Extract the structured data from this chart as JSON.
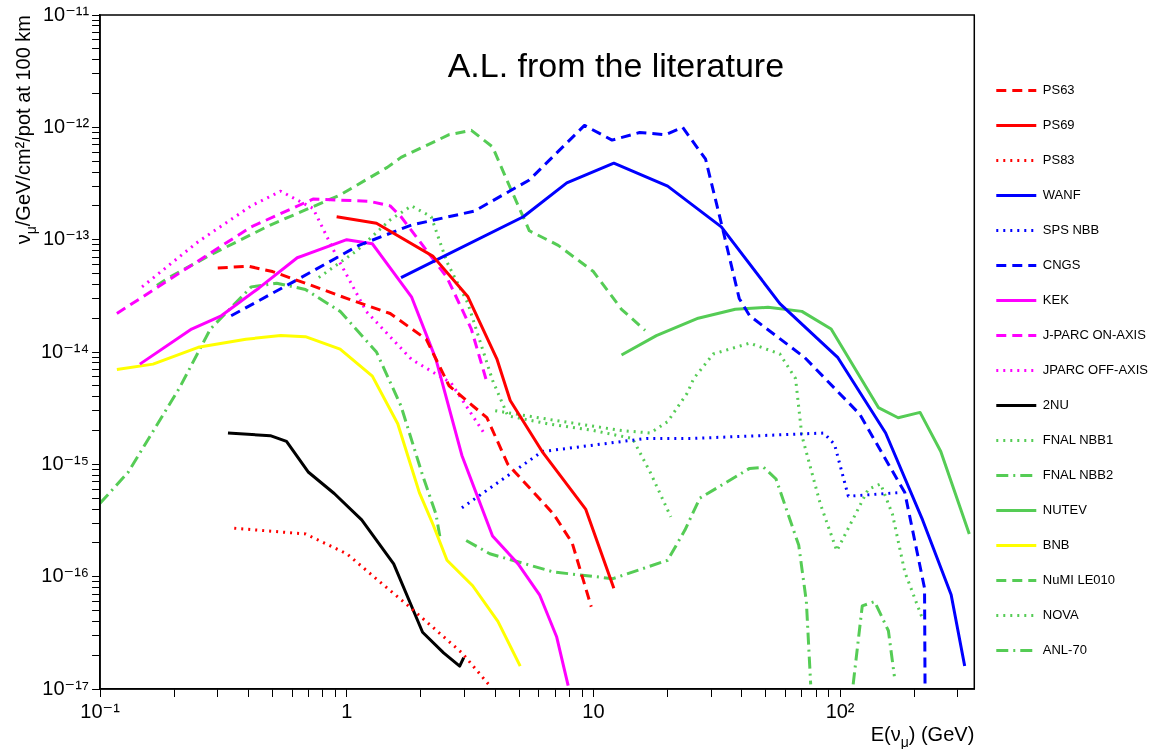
{
  "chart_data": {
    "type": "line",
    "title": "A.L. from the literature",
    "xlabel": "E(ν$_{μ}$) (GeV)",
    "ylabel": "ν$_{μ}$/GeV/cm²/pot at 100 km",
    "log": "xy",
    "marker": "none",
    "legend": "right",
    "xlim": [
      0.1,
      350
    ],
    "ylim": [
      1e-17,
      1e-11
    ],
    "xticks": [
      {
        "value": 0.1,
        "label": "10⁻¹"
      },
      {
        "value": 0.2,
        "label": null
      },
      {
        "value": 0.3,
        "label": null
      },
      {
        "value": 0.4,
        "label": null
      },
      {
        "value": 0.5,
        "label": null
      },
      {
        "value": 0.6,
        "label": null
      },
      {
        "value": 0.7,
        "label": null
      },
      {
        "value": 0.8,
        "label": null
      },
      {
        "value": 0.9,
        "label": null
      },
      1,
      {
        "value": 2,
        "label": null
      },
      {
        "value": 3,
        "label": null
      },
      {
        "value": 4,
        "label": null
      },
      {
        "value": 5,
        "label": null
      },
      {
        "value": 6,
        "label": null
      },
      {
        "value": 7,
        "label": null
      },
      {
        "value": 8,
        "label": null
      },
      {
        "value": 9,
        "label": null
      },
      10,
      {
        "value": 20,
        "label": null
      },
      {
        "value": 30,
        "label": null
      },
      {
        "value": 40,
        "label": null
      },
      {
        "value": 50,
        "label": null
      },
      {
        "value": 60,
        "label": null
      },
      {
        "value": 70,
        "label": null
      },
      {
        "value": 80,
        "label": null
      },
      {
        "value": 90,
        "label": null
      },
      {
        "value": 100,
        "label": "10²"
      },
      {
        "value": 200,
        "label": null
      },
      {
        "value": 300,
        "label": null
      }
    ],
    "yticks": [
      {
        "value": 1e-17,
        "label": "10⁻¹⁷"
      },
      {
        "value": 2e-17,
        "label": null
      },
      {
        "value": 3e-17,
        "label": null
      },
      {
        "value": 4e-17,
        "label": null
      },
      {
        "value": 5e-17,
        "label": null
      },
      {
        "value": 6e-17,
        "label": null
      },
      {
        "value": 7e-17,
        "label": null
      },
      {
        "value": 8e-17,
        "label": null
      },
      {
        "value": 9e-17,
        "label": null
      },
      {
        "value": 1e-16,
        "label": "10⁻¹⁶"
      },
      {
        "value": 2e-16,
        "label": null
      },
      {
        "value": 3e-16,
        "label": null
      },
      {
        "value": 4e-16,
        "label": null
      },
      {
        "value": 5e-16,
        "label": null
      },
      {
        "value": 6e-16,
        "label": null
      },
      {
        "value": 7e-16,
        "label": null
      },
      {
        "value": 8e-16,
        "label": null
      },
      {
        "value": 9e-16,
        "label": null
      },
      {
        "value": 1e-15,
        "label": "10⁻¹⁵"
      },
      {
        "value": 2e-15,
        "label": null
      },
      {
        "value": 3e-15,
        "label": null
      },
      {
        "value": 4e-15,
        "label": null
      },
      {
        "value": 5e-15,
        "label": null
      },
      {
        "value": 6e-15,
        "label": null
      },
      {
        "value": 7e-15,
        "label": null
      },
      {
        "value": 8e-15,
        "label": null
      },
      {
        "value": 9e-15,
        "label": null
      },
      {
        "value": 1e-14,
        "label": "10⁻¹⁴"
      },
      {
        "value": 2e-14,
        "label": null
      },
      {
        "value": 3e-14,
        "label": null
      },
      {
        "value": 4e-14,
        "label": null
      },
      {
        "value": 5e-14,
        "label": null
      },
      {
        "value": 6e-14,
        "label": null
      },
      {
        "value": 7e-14,
        "label": null
      },
      {
        "value": 8e-14,
        "label": null
      },
      {
        "value": 9e-14,
        "label": null
      },
      {
        "value": 1e-13,
        "label": "10⁻¹³"
      },
      {
        "value": 2e-13,
        "label": null
      },
      {
        "value": 3e-13,
        "label": null
      },
      {
        "value": 4e-13,
        "label": null
      },
      {
        "value": 5e-13,
        "label": null
      },
      {
        "value": 6e-13,
        "label": null
      },
      {
        "value": 7e-13,
        "label": null
      },
      {
        "value": 8e-13,
        "label": null
      },
      {
        "value": 9e-13,
        "label": null
      },
      {
        "value": 1e-12,
        "label": "10⁻¹²"
      },
      {
        "value": 2e-12,
        "label": null
      },
      {
        "value": 3e-12,
        "label": null
      },
      {
        "value": 4e-12,
        "label": null
      },
      {
        "value": 5e-12,
        "label": null
      },
      {
        "value": 6e-12,
        "label": null
      },
      {
        "value": 7e-12,
        "label": null
      },
      {
        "value": 8e-12,
        "label": null
      },
      {
        "value": 9e-12,
        "label": null
      },
      {
        "value": 1e-11,
        "label": "10⁻¹¹"
      }
    ],
    "series": [
      {
        "name": "PS63",
        "color": "#ff0000",
        "line_style": "dashed",
        "x": [
          0.3,
          0.4,
          0.5,
          0.7,
          1,
          1.5,
          2.1,
          2.6,
          3.7,
          4.5,
          6.9,
          8.2,
          9.8
        ],
        "values": [
          5.6e-14,
          5.8e-14,
          5.2e-14,
          4e-14,
          3e-14,
          2.2e-14,
          1.3e-14,
          5e-15,
          2.6e-15,
          1e-15,
          3.6e-16,
          2e-16,
          5.4e-17
        ]
      },
      {
        "name": "PS69",
        "color": "#ff0000",
        "line_style": "solid",
        "x": [
          0.91,
          1.32,
          2.24,
          3.1,
          4.06,
          4.6,
          6.2,
          9.3,
          12.1
        ],
        "values": [
          1.6e-13,
          1.4e-13,
          7.1e-14,
          3.1e-14,
          8.7e-15,
          3.7e-15,
          1.3e-15,
          4e-16,
          7.9e-17
        ]
      },
      {
        "name": "PS83",
        "color": "#ff0000",
        "line_style": "dotted",
        "x": [
          0.35,
          0.68,
          1.0,
          1.83,
          2.93,
          3.8
        ],
        "values": [
          2.7e-16,
          2.4e-16,
          1.6e-16,
          5.2e-17,
          2.1e-17,
          1.07e-17
        ]
      },
      {
        "name": "WANF",
        "color": "#0000ff",
        "line_style": "solid",
        "x": [
          1.66,
          5.2,
          7.8,
          12.1,
          20,
          33,
          57,
          98,
          153,
          216,
          282,
          320
        ],
        "values": [
          4.6e-14,
          1.6e-13,
          3.2e-13,
          4.8e-13,
          3e-13,
          1.3e-13,
          2.7e-14,
          8.9e-15,
          1.9e-15,
          3.2e-16,
          6.9e-17,
          1.6e-17
        ]
      },
      {
        "name": "SPS NBB",
        "color": "#0000ff",
        "line_style": "dotted",
        "x": [
          2.93,
          6.2,
          16.4,
          25,
          86,
          95,
          108,
          173
        ],
        "values": [
          4.1e-16,
          1.3e-15,
          1.7e-15,
          1.7e-15,
          1.9e-15,
          1.5e-15,
          5.2e-16,
          5.6e-16
        ]
      },
      {
        "name": "CNGS",
        "color": "#0000ff",
        "line_style": "dashed",
        "x": [
          0.34,
          0.63,
          1.12,
          1.83,
          3.3,
          5.5,
          9.2,
          11.9,
          15.4,
          19.6,
          23,
          28.5,
          33,
          39,
          43,
          72,
          120,
          183,
          220,
          221
        ],
        "values": [
          2.1e-14,
          4.4e-14,
          8.9e-14,
          1.35e-13,
          1.8e-13,
          3.4e-13,
          1.04e-12,
          7.7e-13,
          9e-13,
          8.6e-13,
          1e-12,
          5.2e-13,
          1.4e-13,
          3e-14,
          2.1e-14,
          8.9e-15,
          2.8e-15,
          5.6e-16,
          7.9e-17,
          1.07e-17
        ]
      },
      {
        "name": "KEK",
        "color": "#ff00ff",
        "line_style": "solid",
        "x": [
          0.145,
          0.235,
          0.31,
          0.44,
          0.63,
          1.0,
          1.27,
          1.83,
          2.3,
          2.93,
          3.9,
          4.95,
          6.05,
          7.1,
          7.9
        ],
        "values": [
          7.8e-15,
          1.6e-14,
          2.1e-14,
          3.7e-14,
          6.9e-14,
          1e-13,
          9.2e-14,
          3.1e-14,
          8.6e-15,
          1.2e-15,
          2.3e-16,
          1.3e-16,
          6.9e-17,
          2.9e-17,
          1.07e-17
        ]
      },
      {
        "name": "J-PARC ON-AXIS",
        "color": "#ff00ff",
        "line_style": "dashed",
        "x": [
          0.117,
          0.22,
          0.41,
          0.73,
          1.23,
          1.5,
          1.66,
          2.55,
          3.2,
          3.68
        ],
        "values": [
          2.2e-14,
          5.4e-14,
          1.3e-13,
          2.3e-13,
          2.2e-13,
          2e-13,
          1.6e-13,
          4.6e-14,
          1.6e-14,
          5.6e-15
        ]
      },
      {
        "name": "JPARC OFF-AXIS",
        "color": "#ff00ff",
        "line_style": "dotted",
        "x": [
          0.148,
          0.25,
          0.41,
          0.54,
          0.73,
          0.91,
          1.2,
          1.83,
          2.65,
          3.6
        ],
        "values": [
          3.8e-14,
          9.6e-14,
          2e-13,
          2.7e-13,
          1.9e-13,
          7.1e-14,
          2.3e-14,
          8.6e-15,
          5.3e-15,
          1.9e-15
        ]
      },
      {
        "name": "2NU",
        "color": "#000000",
        "line_style": "solid",
        "x": [
          0.33,
          0.49,
          0.57,
          0.7,
          0.89,
          1.15,
          1.55,
          2.03,
          2.47,
          2.87,
          2.98
        ],
        "values": [
          1.9e-15,
          1.8e-15,
          1.6e-15,
          8.5e-16,
          5.5e-16,
          3.2e-16,
          1.3e-16,
          3.2e-17,
          2.1e-17,
          1.6e-17,
          1.9e-17
        ]
      },
      {
        "name": "FNAL NBB1",
        "color": "#55cc55",
        "line_style": "dotted",
        "x": [
          4.0,
          6.7,
          13,
          17,
          20,
          24,
          25.5,
          30.6,
          43,
          57,
          66,
          70,
          83,
          97,
          130,
          146,
          163,
          183,
          216
        ],
        "values": [
          3e-15,
          2.5e-15,
          2e-15,
          1.9e-15,
          2.4e-15,
          4.3e-15,
          5.8e-15,
          9.6e-15,
          1.2e-14,
          9.6e-15,
          5.8e-15,
          1.8e-15,
          4.5e-16,
          1.7e-16,
          6e-16,
          6.7e-16,
          3.6e-16,
          1.1e-16,
          4.2e-17
        ]
      },
      {
        "name": "FNAL NBB2",
        "color": "#55cc55",
        "line_style": "dashdot",
        "x": [
          3.05,
          3.8,
          6.9,
          12,
          20,
          23.5,
          27,
          43,
          49,
          55,
          68,
          73,
          76,
          90,
          113,
          123,
          138,
          157,
          166
        ],
        "values": [
          2.1e-16,
          1.6e-16,
          1.1e-16,
          9.6e-17,
          1.4e-16,
          2.6e-16,
          5e-16,
          9.2e-16,
          9.4e-16,
          7.4e-16,
          1.9e-16,
          6e-17,
          1.1e-17,
          null,
          1.1e-17,
          5.5e-17,
          6e-17,
          3.3e-17,
          1.3e-17
        ]
      },
      {
        "name": "NUTEV",
        "color": "#55cc55",
        "line_style": "solid",
        "x": [
          13,
          18,
          26.6,
          37.6,
          51,
          70,
          92,
          143,
          172,
          211,
          256,
          334
        ],
        "values": [
          9.4e-15,
          1.4e-14,
          2e-14,
          2.4e-14,
          2.5e-14,
          2.3e-14,
          1.6e-14,
          3.2e-15,
          2.6e-15,
          2.9e-15,
          1.3e-15,
          2.4e-16
        ]
      },
      {
        "name": "BNB",
        "color": "#ffff00",
        "line_style": "solid",
        "x": [
          0.117,
          0.164,
          0.25,
          0.39,
          0.54,
          0.68,
          0.94,
          1.27,
          1.61,
          1.97,
          2.24,
          2.55,
          3.24,
          4.1,
          5.05
        ],
        "values": [
          7e-15,
          7.8e-15,
          1.1e-14,
          1.3e-14,
          1.4e-14,
          1.37e-14,
          1.06e-14,
          6.1e-15,
          2.3e-15,
          5.6e-16,
          2.9e-16,
          1.4e-16,
          8.3e-17,
          4e-17,
          1.6e-17
        ]
      },
      {
        "name": "NuMI LE010",
        "color": "#55cc55",
        "line_style": "dashed",
        "x": [
          0.17,
          0.19,
          0.29,
          0.49,
          0.94,
          1.46,
          1.66,
          2.6,
          3.2,
          3.9,
          4.6,
          5.5,
          7.2,
          10,
          13,
          16.2
        ],
        "values": [
          3.9e-14,
          4.6e-14,
          7.6e-14,
          1.35e-13,
          2.5e-13,
          4.4e-13,
          5.4e-13,
          8.6e-13,
          9.4e-13,
          6.7e-13,
          2.9e-13,
          1.2e-13,
          8.9e-14,
          5.2e-14,
          2.4e-14,
          1.56e-14
        ]
      },
      {
        "name": "NOVA",
        "color": "#55cc55",
        "line_style": "dotted",
        "x": [
          0.77,
          1.1,
          1.5,
          1.83,
          2.2,
          2.55,
          3.1,
          3.9,
          4.5,
          6.5,
          10,
          14.4,
          17,
          20.6
        ],
        "values": [
          4.6e-14,
          8e-14,
          1.5e-13,
          2e-13,
          1.6e-13,
          6.3e-14,
          2.7e-14,
          5.6e-15,
          2.7e-15,
          2.3e-15,
          2e-15,
          1.7e-15,
          8.5e-16,
          3.4e-16
        ]
      },
      {
        "name": "ANL-70",
        "color": "#55cc55",
        "line_style": "dashdot",
        "x": [
          0.1,
          0.13,
          0.21,
          0.28,
          0.41,
          0.52,
          0.68,
          0.94,
          1.32,
          1.66,
          2.03,
          2.3,
          2.4
        ],
        "values": [
          4.5e-16,
          8.5e-16,
          4.8e-15,
          1.6e-14,
          3.8e-14,
          4.1e-14,
          3.6e-14,
          2.3e-14,
          1e-14,
          3.3e-15,
          8e-16,
          3.6e-16,
          2.1e-16
        ]
      }
    ]
  }
}
